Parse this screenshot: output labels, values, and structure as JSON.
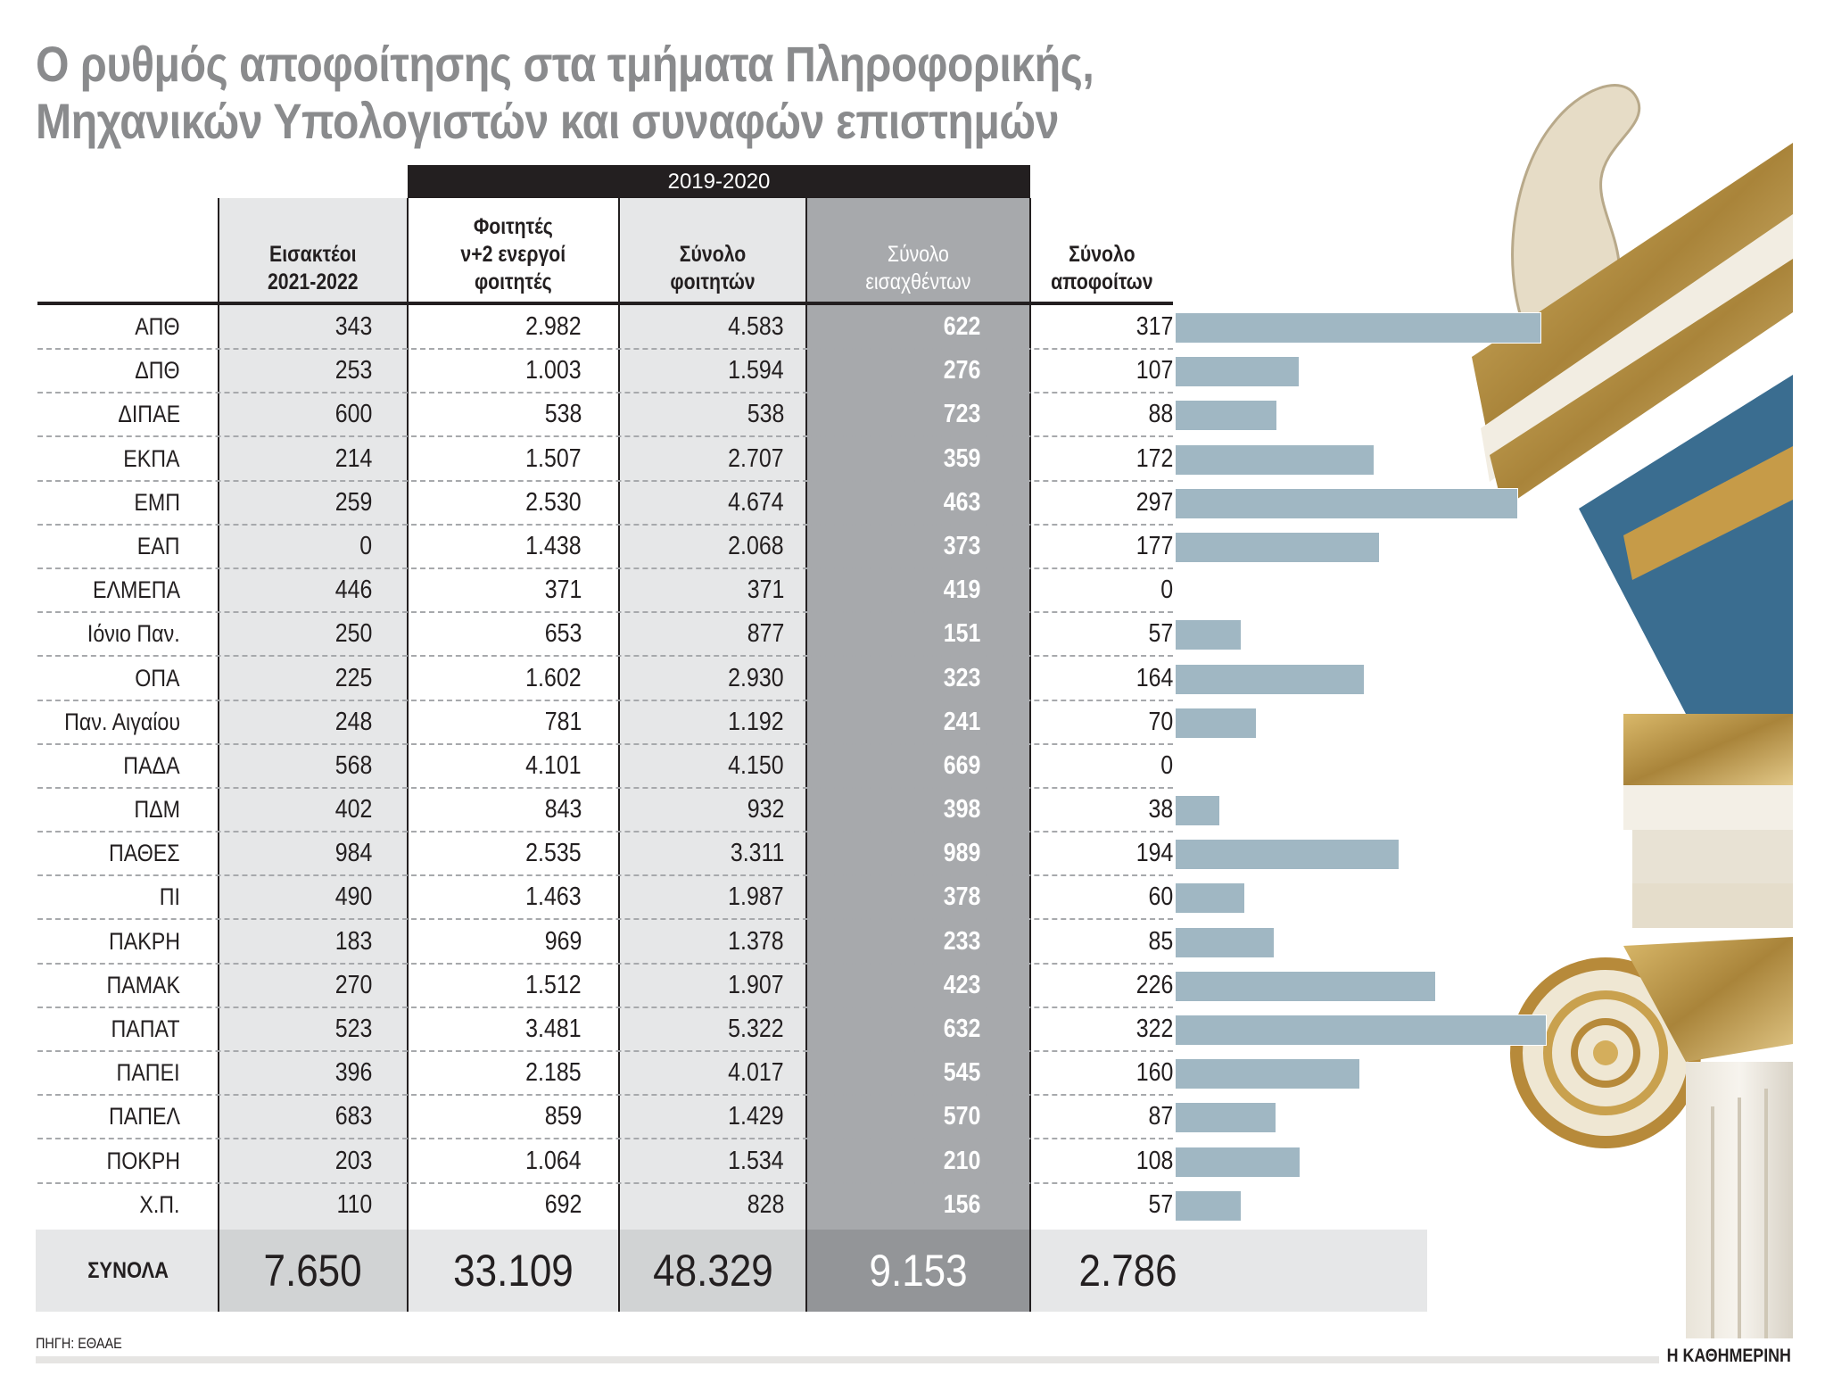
{
  "title": {
    "line1": "Ο ρυθμός αποφοίτησης στα τμήματα Πληροφορικής,",
    "line2": "Μηχανικών Υπολογιστών και συναφών επιστημών"
  },
  "group_header": "2019-2020",
  "columns": [
    {
      "line1": "Εισακτέοι",
      "line2": "2021-2022"
    },
    {
      "line1": "Φοιτητές",
      "line2": "ν+2 ενεργοί",
      "line3": "φοιτητές"
    },
    {
      "line1": "Σύνολο",
      "line2": "φοιτητών"
    },
    {
      "line1": "Σύνολο",
      "line2": "εισαχθέντων"
    },
    {
      "line1": "Σύνολο",
      "line2": "αποφοίτων"
    }
  ],
  "rows": [
    {
      "label": "ΑΠΘ",
      "admissions_2122": "343",
      "active_n2": "2.982",
      "total_students": "4.583",
      "total_admitted": "622",
      "total_graduates": "317"
    },
    {
      "label": "ΔΠΘ",
      "admissions_2122": "253",
      "active_n2": "1.003",
      "total_students": "1.594",
      "total_admitted": "276",
      "total_graduates": "107"
    },
    {
      "label": "ΔΙΠΑΕ",
      "admissions_2122": "600",
      "active_n2": "538",
      "total_students": "538",
      "total_admitted": "723",
      "total_graduates": "88"
    },
    {
      "label": "ΕΚΠΑ",
      "admissions_2122": "214",
      "active_n2": "1.507",
      "total_students": "2.707",
      "total_admitted": "359",
      "total_graduates": "172"
    },
    {
      "label": "ΕΜΠ",
      "admissions_2122": "259",
      "active_n2": "2.530",
      "total_students": "4.674",
      "total_admitted": "463",
      "total_graduates": "297"
    },
    {
      "label": "ΕΑΠ",
      "admissions_2122": "0",
      "active_n2": "1.438",
      "total_students": "2.068",
      "total_admitted": "373",
      "total_graduates": "177"
    },
    {
      "label": "ΕΛΜΕΠΑ",
      "admissions_2122": "446",
      "active_n2": "371",
      "total_students": "371",
      "total_admitted": "419",
      "total_graduates": "0"
    },
    {
      "label": "Ιόνιο Παν.",
      "admissions_2122": "250",
      "active_n2": "653",
      "total_students": "877",
      "total_admitted": "151",
      "total_graduates": "57"
    },
    {
      "label": "ΟΠΑ",
      "admissions_2122": "225",
      "active_n2": "1.602",
      "total_students": "2.930",
      "total_admitted": "323",
      "total_graduates": "164"
    },
    {
      "label": "Παν. Αιγαίου",
      "admissions_2122": "248",
      "active_n2": "781",
      "total_students": "1.192",
      "total_admitted": "241",
      "total_graduates": "70"
    },
    {
      "label": "ΠΑΔΑ",
      "admissions_2122": "568",
      "active_n2": "4.101",
      "total_students": "4.150",
      "total_admitted": "669",
      "total_graduates": "0"
    },
    {
      "label": "ΠΔΜ",
      "admissions_2122": "402",
      "active_n2": "843",
      "total_students": "932",
      "total_admitted": "398",
      "total_graduates": "38"
    },
    {
      "label": "ΠΑΘΕΣ",
      "admissions_2122": "984",
      "active_n2": "2.535",
      "total_students": "3.311",
      "total_admitted": "989",
      "total_graduates": "194"
    },
    {
      "label": "ΠΙ",
      "admissions_2122": "490",
      "active_n2": "1.463",
      "total_students": "1.987",
      "total_admitted": "378",
      "total_graduates": "60"
    },
    {
      "label": "ΠΑΚΡΗ",
      "admissions_2122": "183",
      "active_n2": "969",
      "total_students": "1.378",
      "total_admitted": "233",
      "total_graduates": "85"
    },
    {
      "label": "ΠΑΜΑΚ",
      "admissions_2122": "270",
      "active_n2": "1.512",
      "total_students": "1.907",
      "total_admitted": "423",
      "total_graduates": "226"
    },
    {
      "label": "ΠΑΠΑΤ",
      "admissions_2122": "523",
      "active_n2": "3.481",
      "total_students": "5.322",
      "total_admitted": "632",
      "total_graduates": "322"
    },
    {
      "label": "ΠΑΠΕΙ",
      "admissions_2122": "396",
      "active_n2": "2.185",
      "total_students": "4.017",
      "total_admitted": "545",
      "total_graduates": "160"
    },
    {
      "label": "ΠΑΠΕΛ",
      "admissions_2122": "683",
      "active_n2": "859",
      "total_students": "1.429",
      "total_admitted": "570",
      "total_graduates": "87"
    },
    {
      "label": "ΠΟΚΡΗ",
      "admissions_2122": "203",
      "active_n2": "1.064",
      "total_students": "1.534",
      "total_admitted": "210",
      "total_graduates": "108"
    },
    {
      "label": "Χ.Π.",
      "admissions_2122": "110",
      "active_n2": "692",
      "total_students": "828",
      "total_admitted": "156",
      "total_graduates": "57"
    }
  ],
  "totals": {
    "label": "ΣΥΝΟΛΑ",
    "admissions_2122": "7.650",
    "active_n2": "33.109",
    "total_students": "48.329",
    "total_admitted": "9.153",
    "total_graduates": "2.786"
  },
  "source": "ΠΗΓΗ: ΕΘΑΑΕ",
  "brand": "Η ΚΑΘΗΜΕΡΙΝΗ",
  "colors": {
    "title": "#8a8b8d",
    "header_band": "#231f20",
    "light_column": "#e6e7e8",
    "dark_column": "#a7a9ac",
    "bar": "#a0b7c3"
  },
  "chart_data": {
    "type": "table",
    "title": "Ο ρυθμός αποφοίτησης στα τμήματα Πληροφορικής, Μηχανικών Υπολογιστών και συναφών επιστημών",
    "group_header": "2019-2020",
    "columns": [
      "Εισακτέοι 2021-2022",
      "Φοιτητές ν+2 ενεργοί φοιτητές",
      "Σύνολο φοιτητών",
      "Σύνολο εισαχθέντων",
      "Σύνολο αποφοίτων"
    ],
    "categories": [
      "ΑΠΘ",
      "ΔΠΘ",
      "ΔΙΠΑΕ",
      "ΕΚΠΑ",
      "ΕΜΠ",
      "ΕΑΠ",
      "ΕΛΜΕΠΑ",
      "Ιόνιο Παν.",
      "ΟΠΑ",
      "Παν. Αιγαίου",
      "ΠΑΔΑ",
      "ΠΔΜ",
      "ΠΑΘΕΣ",
      "ΠΙ",
      "ΠΑΚΡΗ",
      "ΠΑΜΑΚ",
      "ΠΑΠΑΤ",
      "ΠΑΠΕΙ",
      "ΠΑΠΕΛ",
      "ΠΟΚΡΗ",
      "Χ.Π."
    ],
    "series": [
      {
        "name": "Εισακτέοι 2021-2022",
        "values": [
          343,
          253,
          600,
          214,
          259,
          0,
          446,
          250,
          225,
          248,
          568,
          402,
          984,
          490,
          183,
          270,
          523,
          396,
          683,
          203,
          110
        ],
        "total": 7650
      },
      {
        "name": "Φοιτητές ν+2 ενεργοί φοιτητές",
        "values": [
          2982,
          1003,
          538,
          1507,
          2530,
          1438,
          371,
          653,
          1602,
          781,
          4101,
          843,
          2535,
          1463,
          969,
          1512,
          3481,
          2185,
          859,
          1064,
          692
        ],
        "total": 33109
      },
      {
        "name": "Σύνολο φοιτητών",
        "values": [
          4583,
          1594,
          538,
          2707,
          4674,
          2068,
          371,
          877,
          2930,
          1192,
          4150,
          932,
          3311,
          1987,
          1378,
          1907,
          5322,
          4017,
          1429,
          1534,
          828
        ],
        "total": 48329
      },
      {
        "name": "Σύνολο εισαχθέντων",
        "values": [
          622,
          276,
          723,
          359,
          463,
          373,
          419,
          151,
          323,
          241,
          669,
          398,
          989,
          378,
          233,
          423,
          632,
          545,
          570,
          210,
          156
        ],
        "total": 9153
      },
      {
        "name": "Σύνολο αποφοίτων",
        "values": [
          317,
          107,
          88,
          172,
          297,
          177,
          0,
          57,
          164,
          70,
          0,
          38,
          194,
          60,
          85,
          226,
          322,
          160,
          87,
          108,
          57
        ],
        "total": 2786,
        "bar": true
      }
    ],
    "bar_series": "Σύνολο αποφοίτων",
    "bar_max": 322,
    "source": "ΠΗΓΗ: ΕΘΑΑΕ"
  }
}
